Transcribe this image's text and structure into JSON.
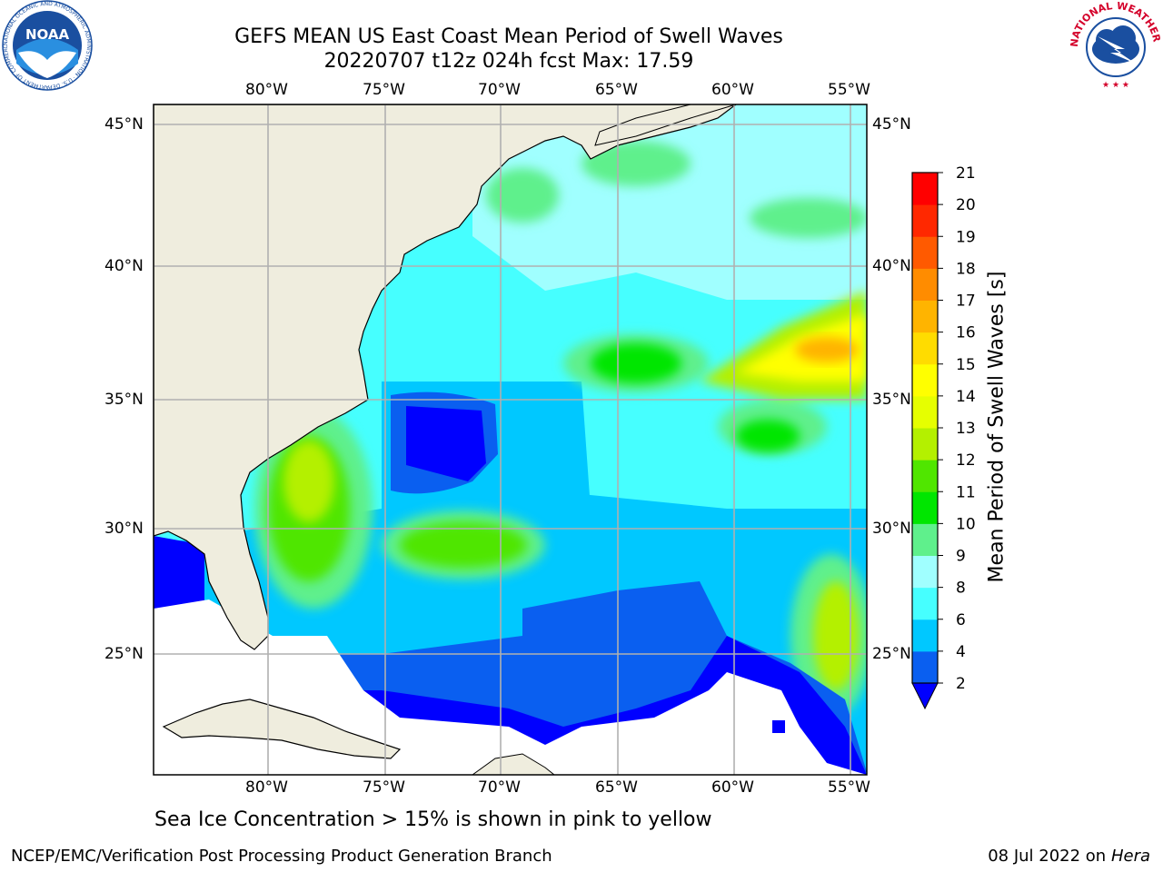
{
  "title": {
    "line1": "GEFS MEAN US East Coast Mean Period of Swell Waves",
    "line2": "20220707 t12z 024h fcst   Max: 17.59"
  },
  "map": {
    "lon_ticks": [
      "80°W",
      "75°W",
      "70°W",
      "65°W",
      "60°W",
      "55°W"
    ],
    "lat_ticks": [
      "45°N",
      "40°N",
      "35°N",
      "30°N",
      "25°N"
    ],
    "colors": {
      "land": "#efedde",
      "no_data": "#ffffff",
      "grid": "#b0b0b0",
      "coast": "#000000"
    }
  },
  "colorbar": {
    "label": "Mean Period of Swell Waves [s]",
    "levels": [
      "2",
      "4",
      "6",
      "8",
      "9",
      "10",
      "11",
      "12",
      "13",
      "14",
      "15",
      "16",
      "17",
      "18",
      "19",
      "20",
      "21"
    ],
    "colors": [
      "#0a5ff0",
      "#00c8ff",
      "#46ffff",
      "#a0ffff",
      "#5ff08c",
      "#00e600",
      "#50e600",
      "#b4f000",
      "#e6ff00",
      "#ffff00",
      "#ffdc00",
      "#ffb400",
      "#ff8c00",
      "#ff5a00",
      "#ff2800",
      "#ff0000"
    ],
    "under_color": "#0000ff"
  },
  "ice_note": "Sea Ice Concentration > 15% is shown in pink to yellow",
  "footer": {
    "left": "NCEP/EMC/Verification Post Processing Product Generation Branch",
    "right_date": "08 Jul 2022 on ",
    "right_host": "Hera"
  },
  "logos": {
    "noaa_text": "NOAA",
    "noaa_ring": "NATIONAL OCEANIC AND ATMOSPHERIC ADMINISTRATION · U.S. DEPARTMENT OF COMMERCE",
    "nws_ring": "NATIONAL WEATHER SERVICE"
  }
}
